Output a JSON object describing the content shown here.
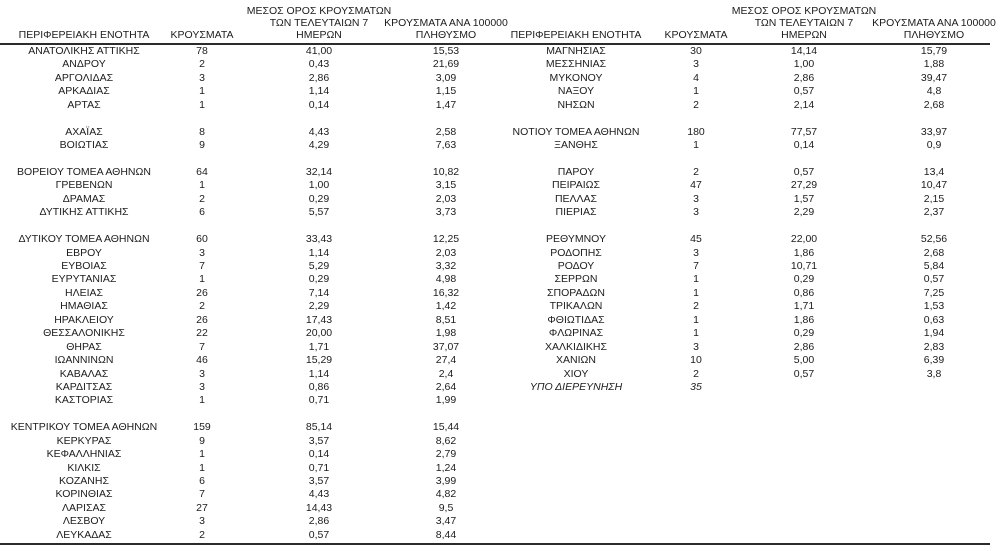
{
  "colors": {
    "background": "#ffffff",
    "text": "#1c1c1c",
    "rule": "#2b2b2b"
  },
  "table": {
    "header": {
      "region": [
        "ΠΕΡΙΦΕΡΕΙΑΚΗ ΕΝΟΤΗΤΑ"
      ],
      "cases": [
        "ΚΡΟΥΣΜΑΤΑ"
      ],
      "avg7": [
        "ΜΕΣΟΣ ΟΡΟΣ ΚΡΟΥΣΜΑΤΩΝ",
        "ΤΩΝ ΤΕΛΕΥΤΑΙΩΝ 7",
        "ΗΜΕΡΩΝ"
      ],
      "per100k": [
        "ΚΡΟΥΣΜΑΤΑ ΑΝΑ 100000",
        "ΠΛΗΘΥΣΜΟ"
      ]
    },
    "left_rows": [
      {
        "region": "ΑΝΑΤΟΛΙΚΗΣ ΑΤΤΙΚΗΣ",
        "cases": "78",
        "avg7": "41,00",
        "per100k": "15,53"
      },
      {
        "region": "ΑΝΔΡΟΥ",
        "cases": "2",
        "avg7": "0,43",
        "per100k": "21,69"
      },
      {
        "region": "ΑΡΓΟΛΙΔΑΣ",
        "cases": "3",
        "avg7": "2,86",
        "per100k": "3,09"
      },
      {
        "region": "ΑΡΚΑΔΙΑΣ",
        "cases": "1",
        "avg7": "1,14",
        "per100k": "1,15"
      },
      {
        "region": "ΑΡΤΑΣ",
        "cases": "1",
        "avg7": "0,14",
        "per100k": "1,47"
      },
      null,
      {
        "region": "ΑΧΑΪΑΣ",
        "cases": "8",
        "avg7": "4,43",
        "per100k": "2,58"
      },
      {
        "region": "ΒΟΙΩΤΙΑΣ",
        "cases": "9",
        "avg7": "4,29",
        "per100k": "7,63"
      },
      null,
      {
        "region": "ΒΟΡΕΙΟΥ ΤΟΜΕΑ ΑΘΗΝΩΝ",
        "cases": "64",
        "avg7": "32,14",
        "per100k": "10,82"
      },
      {
        "region": "ΓΡΕΒΕΝΩΝ",
        "cases": "1",
        "avg7": "1,00",
        "per100k": "3,15"
      },
      {
        "region": "ΔΡΑΜΑΣ",
        "cases": "2",
        "avg7": "0,29",
        "per100k": "2,03"
      },
      {
        "region": "ΔΥΤΙΚΗΣ ΑΤΤΙΚΗΣ",
        "cases": "6",
        "avg7": "5,57",
        "per100k": "3,73"
      },
      null,
      {
        "region": "ΔΥΤΙΚΟΥ ΤΟΜΕΑ ΑΘΗΝΩΝ",
        "cases": "60",
        "avg7": "33,43",
        "per100k": "12,25"
      },
      {
        "region": "ΕΒΡΟΥ",
        "cases": "3",
        "avg7": "1,14",
        "per100k": "2,03"
      },
      {
        "region": "ΕΥΒΟΙΑΣ",
        "cases": "7",
        "avg7": "5,29",
        "per100k": "3,32"
      },
      {
        "region": "ΕΥΡΥΤΑΝΙΑΣ",
        "cases": "1",
        "avg7": "0,29",
        "per100k": "4,98"
      },
      {
        "region": "ΗΛΕΙΑΣ",
        "cases": "26",
        "avg7": "7,14",
        "per100k": "16,32"
      },
      {
        "region": "ΗΜΑΘΙΑΣ",
        "cases": "2",
        "avg7": "2,29",
        "per100k": "1,42"
      },
      {
        "region": "ΗΡΑΚΛΕΙΟΥ",
        "cases": "26",
        "avg7": "17,43",
        "per100k": "8,51"
      },
      {
        "region": "ΘΕΣΣΑΛΟΝΙΚΗΣ",
        "cases": "22",
        "avg7": "20,00",
        "per100k": "1,98"
      },
      {
        "region": "ΘΗΡΑΣ",
        "cases": "7",
        "avg7": "1,71",
        "per100k": "37,07"
      },
      {
        "region": "ΙΩΑΝΝΙΝΩΝ",
        "cases": "46",
        "avg7": "15,29",
        "per100k": "27,4"
      },
      {
        "region": "ΚΑΒΑΛΑΣ",
        "cases": "3",
        "avg7": "1,14",
        "per100k": "2,4"
      },
      {
        "region": "ΚΑΡΔΙΤΣΑΣ",
        "cases": "3",
        "avg7": "0,86",
        "per100k": "2,64"
      },
      {
        "region": "ΚΑΣΤΟΡΙΑΣ",
        "cases": "1",
        "avg7": "0,71",
        "per100k": "1,99"
      },
      null,
      {
        "region": "ΚΕΝΤΡΙΚΟΥ ΤΟΜΕΑ ΑΘΗΝΩΝ",
        "cases": "159",
        "avg7": "85,14",
        "per100k": "15,44"
      },
      {
        "region": "ΚΕΡΚΥΡΑΣ",
        "cases": "9",
        "avg7": "3,57",
        "per100k": "8,62"
      },
      {
        "region": "ΚΕΦΑΛΛΗΝΙΑΣ",
        "cases": "1",
        "avg7": "0,14",
        "per100k": "2,79"
      },
      {
        "region": "ΚΙΛΚΙΣ",
        "cases": "1",
        "avg7": "0,71",
        "per100k": "1,24"
      },
      {
        "region": "ΚΟΖΑΝΗΣ",
        "cases": "6",
        "avg7": "3,57",
        "per100k": "3,99"
      },
      {
        "region": "ΚΟΡΙΝΘΙΑΣ",
        "cases": "7",
        "avg7": "4,43",
        "per100k": "4,82"
      },
      {
        "region": "ΛΑΡΙΣΑΣ",
        "cases": "27",
        "avg7": "14,43",
        "per100k": "9,5"
      },
      {
        "region": "ΛΕΣΒΟΥ",
        "cases": "3",
        "avg7": "2,86",
        "per100k": "3,47"
      },
      {
        "region": "ΛΕΥΚΑΔΑΣ",
        "cases": "2",
        "avg7": "0,57",
        "per100k": "8,44"
      }
    ],
    "right_rows": [
      {
        "region": "ΜΑΓΝΗΣΙΑΣ",
        "cases": "30",
        "avg7": "14,14",
        "per100k": "15,79"
      },
      {
        "region": "ΜΕΣΣΗΝΙΑΣ",
        "cases": "3",
        "avg7": "1,00",
        "per100k": "1,88"
      },
      {
        "region": "ΜΥΚΟΝΟΥ",
        "cases": "4",
        "avg7": "2,86",
        "per100k": "39,47"
      },
      {
        "region": "ΝΑΞΟΥ",
        "cases": "1",
        "avg7": "0,57",
        "per100k": "4,8"
      },
      {
        "region": "ΝΗΣΩΝ",
        "cases": "2",
        "avg7": "2,14",
        "per100k": "2,68"
      },
      null,
      {
        "region": "ΝΟΤΙΟΥ ΤΟΜΕΑ ΑΘΗΝΩΝ",
        "cases": "180",
        "avg7": "77,57",
        "per100k": "33,97"
      },
      {
        "region": "ΞΑΝΘΗΣ",
        "cases": "1",
        "avg7": "0,14",
        "per100k": "0,9"
      },
      null,
      {
        "region": "ΠΑΡΟΥ",
        "cases": "2",
        "avg7": "0,57",
        "per100k": "13,4"
      },
      {
        "region": "ΠΕΙΡΑΙΩΣ",
        "cases": "47",
        "avg7": "27,29",
        "per100k": "10,47"
      },
      {
        "region": "ΠΕΛΛΑΣ",
        "cases": "3",
        "avg7": "1,57",
        "per100k": "2,15"
      },
      {
        "region": "ΠΙΕΡΙΑΣ",
        "cases": "3",
        "avg7": "2,29",
        "per100k": "2,37"
      },
      null,
      {
        "region": "ΡΕΘΥΜΝΟΥ",
        "cases": "45",
        "avg7": "22,00",
        "per100k": "52,56"
      },
      {
        "region": "ΡΟΔΟΠΗΣ",
        "cases": "3",
        "avg7": "1,86",
        "per100k": "2,68"
      },
      {
        "region": "ΡΟΔΟΥ",
        "cases": "7",
        "avg7": "10,71",
        "per100k": "5,84"
      },
      {
        "region": "ΣΕΡΡΩΝ",
        "cases": "1",
        "avg7": "0,29",
        "per100k": "0,57"
      },
      {
        "region": "ΣΠΟΡΑΔΩΝ",
        "cases": "1",
        "avg7": "0,86",
        "per100k": "7,25"
      },
      {
        "region": "ΤΡΙΚΑΛΩΝ",
        "cases": "2",
        "avg7": "1,71",
        "per100k": "1,53"
      },
      {
        "region": "ΦΘΙΩΤΙΔΑΣ",
        "cases": "1",
        "avg7": "1,86",
        "per100k": "0,63"
      },
      {
        "region": "ΦΛΩΡΙΝΑΣ",
        "cases": "1",
        "avg7": "0,29",
        "per100k": "1,94"
      },
      {
        "region": "ΧΑΛΚΙΔΙΚΗΣ",
        "cases": "3",
        "avg7": "2,86",
        "per100k": "2,83"
      },
      {
        "region": "ΧΑΝΙΩΝ",
        "cases": "10",
        "avg7": "5,00",
        "per100k": "6,39"
      },
      {
        "region": "ΧΙΟΥ",
        "cases": "2",
        "avg7": "0,57",
        "per100k": "3,8"
      },
      {
        "region": "ΥΠΟ ΔΙΕΡΕΥΝΗΣΗ",
        "cases": "35",
        "avg7": "",
        "per100k": "",
        "italic": true
      }
    ]
  }
}
